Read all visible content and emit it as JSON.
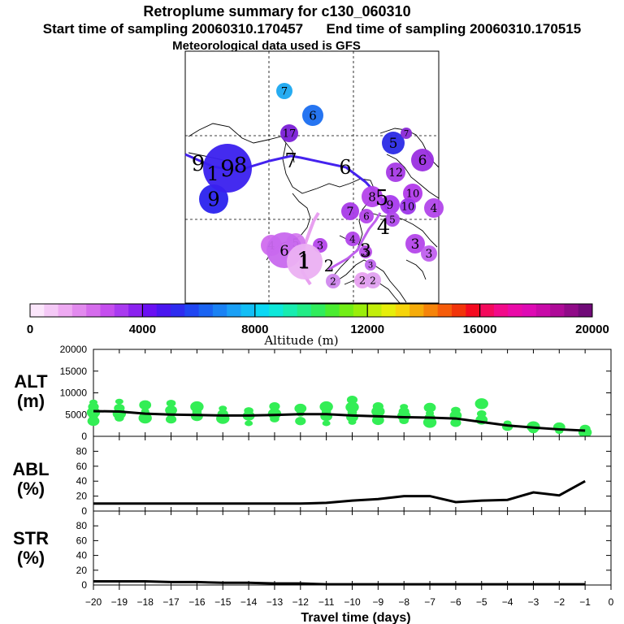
{
  "header": {
    "title": "Retroplume summary for c130_060310",
    "sampling_line": "Start time of sampling 20060310.170457      End time of sampling 20060310.170515",
    "met_line": "Meteorological data used is GFS"
  },
  "colors": {
    "line": "#000000",
    "scatter": "#33ee55",
    "track_dark": "#4422ee",
    "track_light": "#e8a0f0"
  },
  "colorbar": {
    "label": "Altitude (m)",
    "range": [
      0,
      20000
    ],
    "tick_labels": [
      "0",
      "4000",
      "8000",
      "12000",
      "16000",
      "20000"
    ],
    "colors": [
      "#fbe6fb",
      "#f4c9f6",
      "#eeaaf2",
      "#e28aee",
      "#d56cec",
      "#c54eee",
      "#a93af0",
      "#8b22f0",
      "#6a10f2",
      "#4a16f0",
      "#2e2cf0",
      "#2046f2",
      "#1a64f2",
      "#1a82f4",
      "#1aa0f6",
      "#12bef6",
      "#0ad8f4",
      "#0ee8da",
      "#18ecb0",
      "#22ec86",
      "#30ec5c",
      "#4aec30",
      "#72ee16",
      "#9aee0a",
      "#c2ee0a",
      "#e6ee0a",
      "#f6d40a",
      "#f6ac0a",
      "#f6840a",
      "#f65c0a",
      "#f2340a",
      "#f40a20",
      "#f40a5c",
      "#f20a8a",
      "#ea0aa8",
      "#de0ab4",
      "#c80aa8",
      "#ae0a98",
      "#900a88",
      "#700a78"
    ]
  },
  "map": {
    "markers": [
      {
        "label": "7",
        "color": "#1aa8f0"
      },
      {
        "label": "6",
        "color": "#1a6ef0"
      },
      {
        "label": "17",
        "color": "#7a1ed6"
      },
      {
        "label": "5",
        "color": "#2a2ae6"
      },
      {
        "label": "7",
        "color": "#8a2ad6"
      },
      {
        "label": "6",
        "color": "#9a2ee0"
      },
      {
        "label": "12",
        "color": "#a63ae6"
      },
      {
        "label": "9",
        "color": "#2a22ee"
      },
      {
        "label": "9",
        "color": "#3a20ee"
      },
      {
        "label": "10",
        "color": "#b23aea"
      },
      {
        "label": "8",
        "color": "#b442ea"
      },
      {
        "label": "9",
        "color": "#a83aee"
      },
      {
        "label": "10",
        "color": "#9c36ea"
      },
      {
        "label": "4",
        "color": "#b246ea"
      },
      {
        "label": "7",
        "color": "#a83ae8"
      },
      {
        "label": "6",
        "color": "#b446ea"
      },
      {
        "label": "5",
        "color": "#b04aec"
      },
      {
        "label": "4",
        "color": "#b244ea"
      },
      {
        "label": "3",
        "color": "#b446ea"
      },
      {
        "label": "3",
        "color": "#b446ea"
      },
      {
        "label": "4",
        "color": "#d06cee"
      },
      {
        "label": "5",
        "color": "#d47aee"
      },
      {
        "label": "6",
        "color": "#c868ee"
      },
      {
        "label": "3",
        "color": "#c060ee"
      },
      {
        "label": "3",
        "color": "#b84ee8"
      },
      {
        "label": "3",
        "color": "#c066ee"
      },
      {
        "label": "2",
        "color": "#e8a0f0"
      },
      {
        "label": "2",
        "color": "#d088ee"
      },
      {
        "label": "2",
        "color": "#e0a0f0"
      },
      {
        "label": "1",
        "color": "#ebb0f2"
      }
    ],
    "track_labels": [
      "9",
      "1",
      "8",
      "7",
      "6",
      "5",
      "4",
      "3",
      "2",
      "1"
    ]
  },
  "chart_data": [
    {
      "type": "line",
      "id": "alt",
      "title": "ALT",
      "ylabel": "(m)",
      "ylim": [
        0,
        20000
      ],
      "yticks": [
        0,
        5000,
        10000,
        15000,
        20000
      ],
      "x": [
        -20,
        -19,
        -18,
        -17,
        -16,
        -15,
        -14,
        -13,
        -12,
        -11,
        -10,
        -9,
        -8,
        -7,
        -6,
        -5,
        -4,
        -3,
        -2,
        -1
      ],
      "y": [
        5800,
        5700,
        5200,
        5000,
        4900,
        4800,
        4800,
        4900,
        5100,
        5100,
        4800,
        4600,
        4400,
        4300,
        4100,
        3300,
        2500,
        2000,
        1600,
        1300
      ],
      "scatter": [
        {
          "x": -20,
          "y": 7800
        },
        {
          "x": -20,
          "y": 6800
        },
        {
          "x": -20,
          "y": 5500
        },
        {
          "x": -20,
          "y": 4700
        },
        {
          "x": -20,
          "y": 3500
        },
        {
          "x": -19,
          "y": 8000
        },
        {
          "x": -19,
          "y": 6500
        },
        {
          "x": -19,
          "y": 5200
        },
        {
          "x": -19,
          "y": 4200
        },
        {
          "x": -18,
          "y": 7200
        },
        {
          "x": -18,
          "y": 5800
        },
        {
          "x": -18,
          "y": 5000
        },
        {
          "x": -18,
          "y": 4200
        },
        {
          "x": -17,
          "y": 7600
        },
        {
          "x": -17,
          "y": 6000
        },
        {
          "x": -17,
          "y": 5000
        },
        {
          "x": -17,
          "y": 3900
        },
        {
          "x": -16,
          "y": 6800
        },
        {
          "x": -16,
          "y": 5600
        },
        {
          "x": -16,
          "y": 4600
        },
        {
          "x": -15,
          "y": 6400
        },
        {
          "x": -15,
          "y": 5200
        },
        {
          "x": -15,
          "y": 4100
        },
        {
          "x": -14,
          "y": 5900
        },
        {
          "x": -14,
          "y": 4700
        },
        {
          "x": -14,
          "y": 3000
        },
        {
          "x": -13,
          "y": 6900
        },
        {
          "x": -13,
          "y": 5200
        },
        {
          "x": -13,
          "y": 4000
        },
        {
          "x": -12,
          "y": 6400
        },
        {
          "x": -12,
          "y": 5200
        },
        {
          "x": -12,
          "y": 3500
        },
        {
          "x": -11,
          "y": 6800
        },
        {
          "x": -11,
          "y": 5600
        },
        {
          "x": -11,
          "y": 4600
        },
        {
          "x": -11,
          "y": 3000
        },
        {
          "x": -10,
          "y": 8400
        },
        {
          "x": -10,
          "y": 6700
        },
        {
          "x": -10,
          "y": 5500
        },
        {
          "x": -10,
          "y": 4400
        },
        {
          "x": -10,
          "y": 3300
        },
        {
          "x": -9,
          "y": 6900
        },
        {
          "x": -9,
          "y": 5700
        },
        {
          "x": -9,
          "y": 4400
        },
        {
          "x": -9,
          "y": 3700
        },
        {
          "x": -8,
          "y": 6800
        },
        {
          "x": -8,
          "y": 5700
        },
        {
          "x": -8,
          "y": 4700
        },
        {
          "x": -8,
          "y": 3600
        },
        {
          "x": -7,
          "y": 6600
        },
        {
          "x": -7,
          "y": 5300
        },
        {
          "x": -7,
          "y": 4300
        },
        {
          "x": -7,
          "y": 3200
        },
        {
          "x": -6,
          "y": 6000
        },
        {
          "x": -6,
          "y": 4800
        },
        {
          "x": -6,
          "y": 3900
        },
        {
          "x": -6,
          "y": 3100
        },
        {
          "x": -5,
          "y": 7500
        },
        {
          "x": -5,
          "y": 5200
        },
        {
          "x": -5,
          "y": 3800
        },
        {
          "x": -4,
          "y": 3000
        },
        {
          "x": -4,
          "y": 2200
        },
        {
          "x": -3,
          "y": 2200
        },
        {
          "x": -3,
          "y": 1500
        },
        {
          "x": -2,
          "y": 2100
        },
        {
          "x": -2,
          "y": 1200
        },
        {
          "x": -1,
          "y": 1700
        },
        {
          "x": -1,
          "y": 900
        }
      ]
    },
    {
      "type": "line",
      "id": "abl",
      "title": "ABL",
      "ylabel": "(%)",
      "ylim": [
        0,
        100
      ],
      "yticks": [
        0,
        20,
        40,
        60,
        80
      ],
      "x": [
        -20,
        -19,
        -18,
        -17,
        -16,
        -15,
        -14,
        -13,
        -12,
        -11,
        -10,
        -9,
        -8,
        -7,
        -6,
        -5,
        -4,
        -3,
        -2,
        -1
      ],
      "y": [
        10,
        10,
        10,
        10,
        10,
        10,
        10,
        10,
        10,
        11,
        14,
        16,
        20,
        20,
        12,
        14,
        15,
        25,
        21,
        40
      ]
    },
    {
      "type": "line",
      "id": "str",
      "title": "STR",
      "ylabel": "(%)",
      "ylim": [
        0,
        100
      ],
      "yticks": [
        0,
        20,
        40,
        60,
        80
      ],
      "x": [
        -20,
        -19,
        -18,
        -17,
        -16,
        -15,
        -14,
        -13,
        -12,
        -11,
        -10,
        -9,
        -8,
        -7,
        -6,
        -5,
        -4,
        -3,
        -2,
        -1
      ],
      "y": [
        5,
        5,
        5,
        4,
        4,
        3,
        3,
        2,
        2,
        1,
        1,
        1,
        1,
        1,
        1,
        1,
        1,
        1,
        1,
        1
      ]
    }
  ],
  "x_axis": {
    "label": "Travel time (days)",
    "ticks": [
      "−20",
      "−19",
      "−18",
      "−17",
      "−16",
      "−15",
      "−14",
      "−13",
      "−12",
      "−11",
      "−10",
      "−9",
      "−8",
      "−7",
      "−6",
      "−5",
      "−4",
      "−3",
      "−2",
      "−1",
      "0"
    ]
  }
}
